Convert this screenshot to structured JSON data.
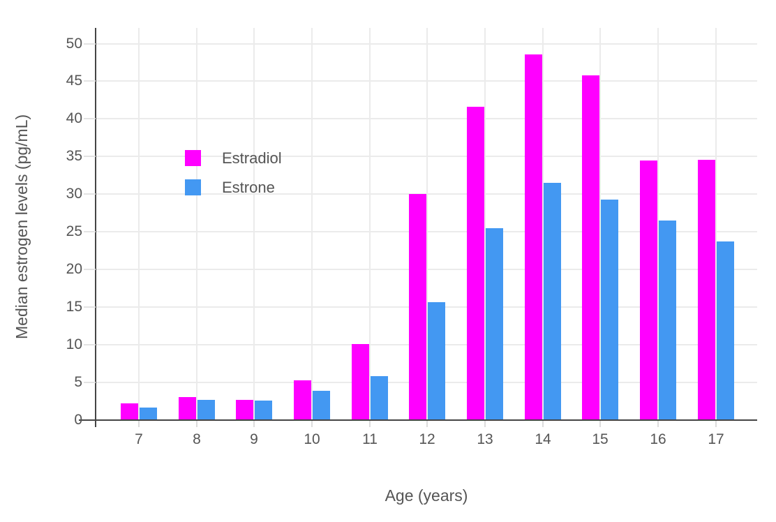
{
  "chart_data": {
    "type": "bar",
    "title": "",
    "xlabel": "Age (years)",
    "ylabel": "Median estrogen levels (pg/mL)",
    "categories": [
      "7",
      "8",
      "9",
      "10",
      "11",
      "12",
      "13",
      "14",
      "15",
      "16",
      "17"
    ],
    "series": [
      {
        "name": "Estradiol",
        "color": "#FF00FF",
        "values": [
          2.2,
          3.1,
          2.7,
          5.3,
          10.1,
          30.0,
          41.6,
          48.6,
          45.8,
          34.5,
          34.6
        ]
      },
      {
        "name": "Estrone",
        "color": "#4398F2",
        "values": [
          1.7,
          2.7,
          2.6,
          3.9,
          5.8,
          15.7,
          25.5,
          31.5,
          29.3,
          26.5,
          23.7
        ]
      }
    ],
    "ylim": [
      0,
      52
    ],
    "yticks": [
      0,
      5,
      10,
      15,
      20,
      25,
      30,
      35,
      40,
      45,
      50
    ],
    "grid": true,
    "legend_position": "inside upper-left",
    "colors": {
      "axis": "#444444",
      "grid": "#EBEBEB",
      "tick_text": "#555555"
    }
  }
}
